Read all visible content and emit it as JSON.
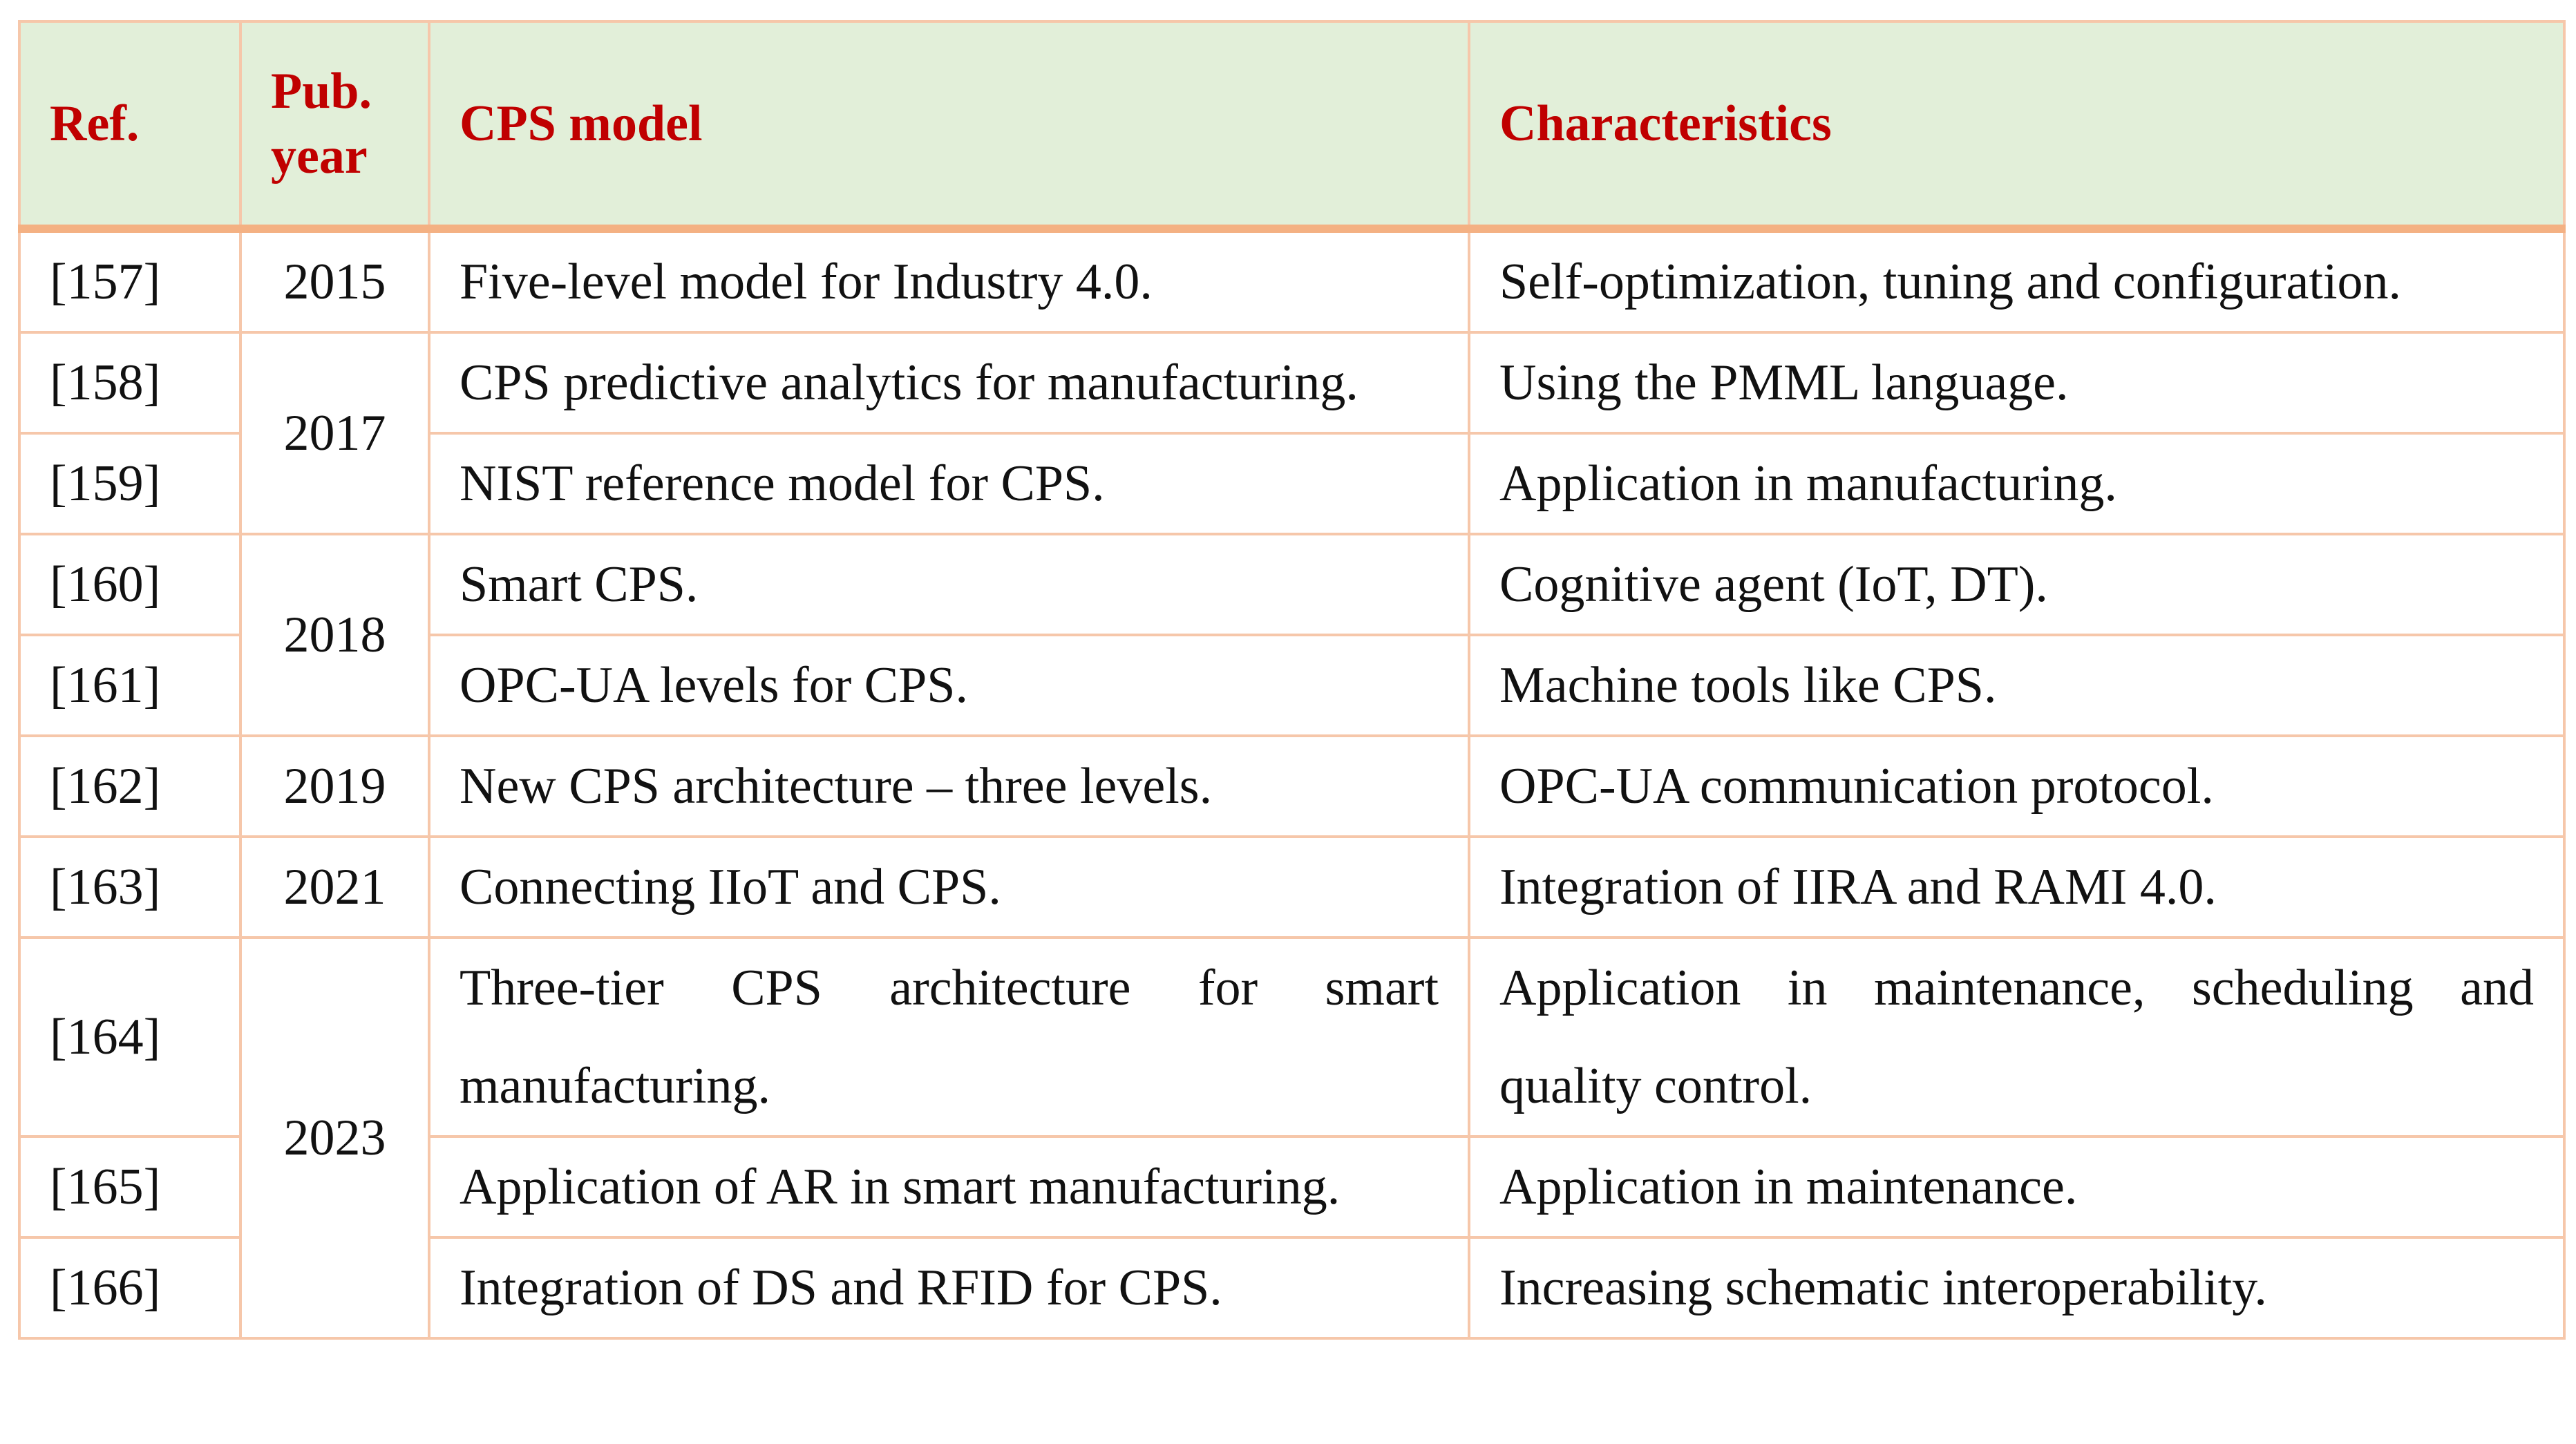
{
  "table": {
    "headers": {
      "ref": "Ref.",
      "year": "Pub. year",
      "model": "CPS model",
      "characteristics": "Characteristics"
    },
    "rows": [
      {
        "ref": "[157]",
        "model": "Five-level model for Industry 4.0.",
        "characteristics": "Self-optimization, tuning and configuration."
      },
      {
        "ref": "[158]",
        "model": "CPS predictive analytics for manufacturing.",
        "characteristics": "Using the PMML language."
      },
      {
        "ref": "[159]",
        "model": "NIST reference model for CPS.",
        "characteristics": "Application in manufacturing."
      },
      {
        "ref": "[160]",
        "model": "Smart CPS.",
        "characteristics": "Cognitive agent (IoT, DT)."
      },
      {
        "ref": "[161]",
        "model": "OPC-UA levels for CPS.",
        "characteristics": "Machine tools like CPS."
      },
      {
        "ref": "[162]",
        "model": "New CPS architecture – three levels.",
        "characteristics": "OPC-UA communication protocol."
      },
      {
        "ref": "[163]",
        "model": "Connecting IIoT and CPS.",
        "characteristics": "Integration of IIRA and RAMI 4.0."
      },
      {
        "ref": "[164]",
        "model": "Three-tier CPS architecture for smart manufacturing.",
        "characteristics": "Application in maintenance, scheduling and quality control."
      },
      {
        "ref": "[165]",
        "model": "Application of AR in smart manufacturing.",
        "characteristics": "Application in maintenance."
      },
      {
        "ref": "[166]",
        "model": "Integration of DS and RFID for CPS.",
        "characteristics": "Increasing schematic interoperability."
      }
    ],
    "years": [
      "2015",
      "2017",
      "2018",
      "2019",
      "2021",
      "2023"
    ]
  }
}
